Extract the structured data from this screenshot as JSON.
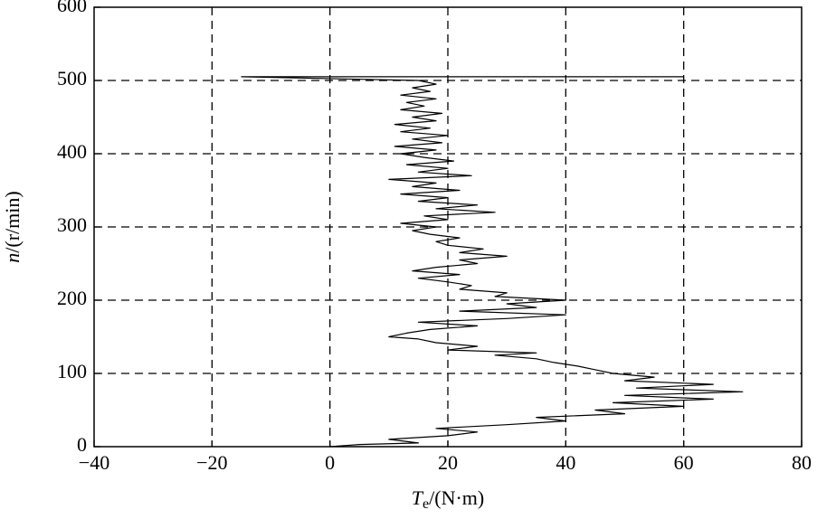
{
  "chart_data": {
    "type": "line",
    "x_label": {
      "symbol": "T",
      "subscript": "e",
      "unit": "/(N·m)"
    },
    "y_label": {
      "symbol": "n",
      "unit": "/(r/min)"
    },
    "xlim": [
      -40,
      80
    ],
    "xticks": [
      {
        "value": -40,
        "label": "−40"
      },
      {
        "value": -20,
        "label": "−20"
      },
      0,
      20,
      40,
      60,
      80
    ],
    "ylim": [
      0,
      600
    ],
    "yticks": [
      0,
      100,
      200,
      300,
      400,
      500,
      600
    ],
    "grid": true,
    "series": [
      {
        "color": "#000000",
        "x": [
          0,
          5,
          15,
          10,
          20,
          25,
          18,
          30,
          40,
          35,
          50,
          45,
          60,
          48,
          65,
          50,
          70,
          52,
          65,
          50,
          55,
          48,
          45,
          42,
          38,
          35,
          28,
          35,
          20,
          25,
          18,
          15,
          10,
          13,
          17,
          25,
          15,
          30,
          40,
          22,
          35,
          30,
          40,
          28,
          30,
          22,
          24,
          20,
          15,
          22,
          14,
          18,
          25,
          22,
          30,
          22,
          26,
          20,
          18,
          22,
          17,
          14,
          18,
          12,
          20,
          16,
          28,
          18,
          25,
          15,
          20,
          12,
          22,
          14,
          18,
          10,
          24,
          15,
          20,
          13,
          21,
          16,
          12,
          18,
          11,
          19,
          14,
          20,
          12,
          17,
          11,
          18,
          14,
          19,
          12,
          16,
          13,
          18,
          12,
          17,
          14,
          18,
          15,
          -15,
          60
        ],
        "values": [
          0,
          3,
          5,
          10,
          15,
          20,
          25,
          30,
          35,
          40,
          45,
          50,
          55,
          60,
          65,
          70,
          75,
          80,
          85,
          90,
          95,
          100,
          105,
          110,
          115,
          120,
          125,
          128,
          132,
          137,
          142,
          147,
          150,
          155,
          160,
          165,
          170,
          175,
          180,
          185,
          190,
          195,
          200,
          205,
          210,
          215,
          220,
          225,
          230,
          235,
          240,
          245,
          250,
          255,
          260,
          265,
          270,
          275,
          280,
          285,
          290,
          295,
          300,
          305,
          310,
          315,
          320,
          325,
          330,
          335,
          340,
          345,
          350,
          355,
          360,
          365,
          370,
          375,
          380,
          385,
          390,
          395,
          400,
          405,
          410,
          415,
          420,
          425,
          430,
          435,
          440,
          445,
          450,
          455,
          460,
          465,
          470,
          475,
          480,
          485,
          490,
          495,
          500,
          505,
          505
        ]
      }
    ]
  }
}
